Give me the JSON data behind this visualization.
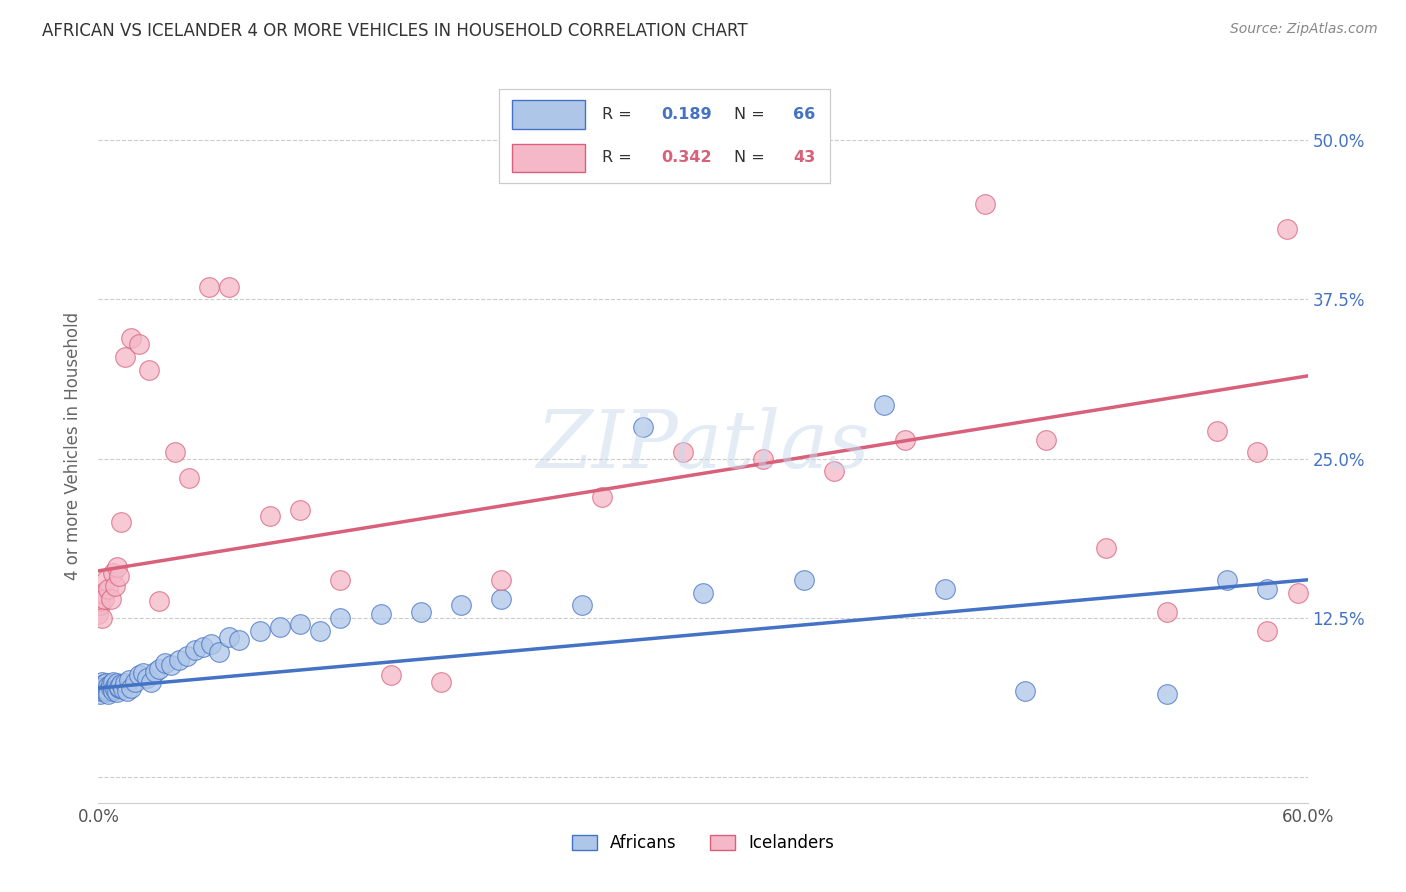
{
  "title": "AFRICAN VS ICELANDER 4 OR MORE VEHICLES IN HOUSEHOLD CORRELATION CHART",
  "source": "Source: ZipAtlas.com",
  "ylabel_label": "4 or more Vehicles in Household",
  "xlim": [
    0.0,
    0.6
  ],
  "ylim": [
    -0.02,
    0.54
  ],
  "african_R": 0.189,
  "african_N": 66,
  "icelander_R": 0.342,
  "icelander_N": 43,
  "african_color": "#aec6e8",
  "icelander_color": "#f4b8c8",
  "african_line_color": "#4472c4",
  "icelander_line_color": "#d9607a",
  "watermark": "ZIPatlas",
  "african_x": [
    0.0,
    0.001,
    0.001,
    0.002,
    0.002,
    0.002,
    0.003,
    0.003,
    0.003,
    0.004,
    0.004,
    0.005,
    0.005,
    0.005,
    0.006,
    0.006,
    0.007,
    0.007,
    0.008,
    0.008,
    0.009,
    0.009,
    0.01,
    0.01,
    0.011,
    0.012,
    0.013,
    0.014,
    0.015,
    0.016,
    0.018,
    0.02,
    0.022,
    0.024,
    0.026,
    0.028,
    0.03,
    0.033,
    0.036,
    0.04,
    0.044,
    0.048,
    0.052,
    0.056,
    0.06,
    0.065,
    0.07,
    0.08,
    0.09,
    0.1,
    0.11,
    0.12,
    0.14,
    0.16,
    0.18,
    0.2,
    0.24,
    0.27,
    0.3,
    0.35,
    0.39,
    0.42,
    0.46,
    0.53,
    0.56,
    0.58
  ],
  "african_y": [
    0.068,
    0.072,
    0.065,
    0.075,
    0.07,
    0.068,
    0.073,
    0.069,
    0.071,
    0.074,
    0.067,
    0.072,
    0.068,
    0.065,
    0.07,
    0.073,
    0.075,
    0.068,
    0.072,
    0.069,
    0.074,
    0.067,
    0.07,
    0.071,
    0.073,
    0.069,
    0.074,
    0.068,
    0.076,
    0.07,
    0.075,
    0.08,
    0.082,
    0.078,
    0.075,
    0.083,
    0.085,
    0.09,
    0.088,
    0.092,
    0.095,
    0.1,
    0.102,
    0.105,
    0.098,
    0.11,
    0.108,
    0.115,
    0.118,
    0.12,
    0.115,
    0.125,
    0.128,
    0.13,
    0.135,
    0.14,
    0.135,
    0.275,
    0.145,
    0.155,
    0.292,
    0.148,
    0.068,
    0.065,
    0.155,
    0.148
  ],
  "icelander_x": [
    0.0,
    0.001,
    0.001,
    0.002,
    0.002,
    0.003,
    0.004,
    0.005,
    0.006,
    0.007,
    0.008,
    0.009,
    0.01,
    0.011,
    0.013,
    0.016,
    0.02,
    0.025,
    0.03,
    0.038,
    0.045,
    0.055,
    0.065,
    0.085,
    0.1,
    0.12,
    0.145,
    0.17,
    0.2,
    0.25,
    0.29,
    0.33,
    0.365,
    0.4,
    0.44,
    0.47,
    0.5,
    0.53,
    0.555,
    0.575,
    0.58,
    0.59,
    0.595
  ],
  "icelander_y": [
    0.128,
    0.135,
    0.138,
    0.125,
    0.145,
    0.14,
    0.155,
    0.148,
    0.14,
    0.16,
    0.15,
    0.165,
    0.158,
    0.2,
    0.33,
    0.345,
    0.34,
    0.32,
    0.138,
    0.255,
    0.235,
    0.385,
    0.385,
    0.205,
    0.21,
    0.155,
    0.08,
    0.075,
    0.155,
    0.22,
    0.255,
    0.25,
    0.24,
    0.265,
    0.45,
    0.265,
    0.18,
    0.13,
    0.272,
    0.255,
    0.115,
    0.43,
    0.145
  ],
  "african_trend_x0": 0.0,
  "african_trend_y0": 0.07,
  "african_trend_x1": 0.6,
  "african_trend_y1": 0.155,
  "icelander_trend_x0": 0.0,
  "icelander_trend_y0": 0.162,
  "icelander_trend_x1": 0.6,
  "icelander_trend_y1": 0.315
}
